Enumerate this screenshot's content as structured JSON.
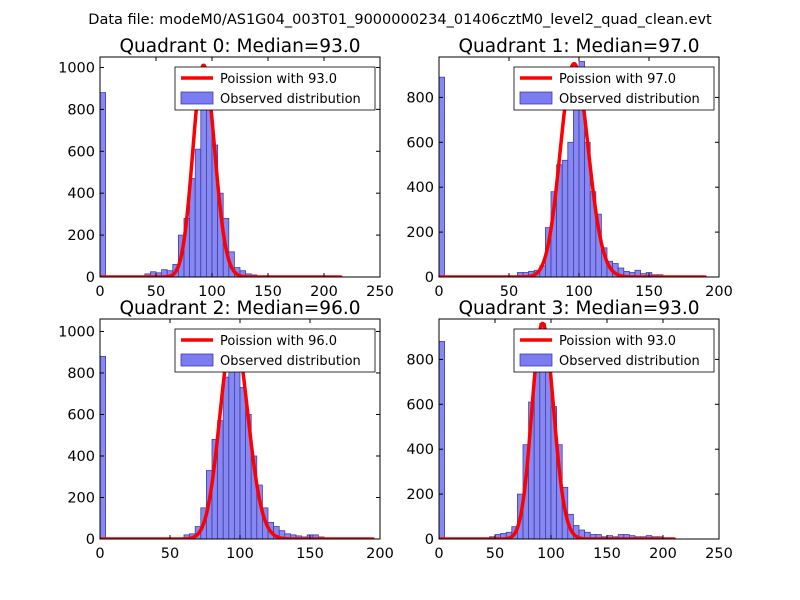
{
  "figure_title": "Data file: modeM0/AS1G04_003T01_9000000234_01406cztM0_level2_quad_clean.evt",
  "colors": {
    "bar_fill": "#7B7BF2",
    "bar_edge": "#3F3FA8",
    "curve": "#FF0000",
    "axes": "#000000"
  },
  "chart_data": [
    {
      "type": "bar",
      "title": "Quadrant 0: Median=93.0",
      "median": 93.0,
      "xlim": [
        0,
        250
      ],
      "ylim": [
        0,
        1050
      ],
      "xticks": [
        0,
        50,
        100,
        150,
        200,
        250
      ],
      "yticks": [
        0,
        200,
        400,
        600,
        800,
        1000
      ],
      "xtick_labels": [
        "0",
        "50",
        "100",
        "150",
        "200",
        "250"
      ],
      "ytick_labels": [
        "0",
        "200",
        "400",
        "600",
        "800",
        "1000"
      ],
      "legend": [
        "Poission with 93.0",
        "Observed distribution"
      ],
      "legend_position": "top-right",
      "series": [
        {
          "name": "Observed distribution",
          "kind": "histogram",
          "bin_width": 5,
          "bins": [
            {
              "x": 0,
              "y": 880
            },
            {
              "x": 40,
              "y": 15
            },
            {
              "x": 45,
              "y": 25
            },
            {
              "x": 50,
              "y": 20
            },
            {
              "x": 55,
              "y": 35
            },
            {
              "x": 60,
              "y": 30
            },
            {
              "x": 65,
              "y": 60
            },
            {
              "x": 70,
              "y": 200
            },
            {
              "x": 75,
              "y": 280
            },
            {
              "x": 80,
              "y": 470
            },
            {
              "x": 85,
              "y": 610
            },
            {
              "x": 90,
              "y": 800
            },
            {
              "x": 95,
              "y": 860
            },
            {
              "x": 100,
              "y": 630
            },
            {
              "x": 105,
              "y": 400
            },
            {
              "x": 110,
              "y": 280
            },
            {
              "x": 115,
              "y": 120
            },
            {
              "x": 120,
              "y": 45
            },
            {
              "x": 125,
              "y": 30
            },
            {
              "x": 130,
              "y": 15
            },
            {
              "x": 135,
              "y": 10
            },
            {
              "x": 140,
              "y": 5
            },
            {
              "x": 150,
              "y": 3
            },
            {
              "x": 160,
              "y": 3
            },
            {
              "x": 170,
              "y": 3
            },
            {
              "x": 190,
              "y": 5
            },
            {
              "x": 205,
              "y": 3
            }
          ]
        },
        {
          "name": "Poission with 93.0",
          "kind": "line",
          "mean": 93.0,
          "peak": 1010,
          "x_range": [
            0,
            215
          ]
        }
      ]
    },
    {
      "type": "bar",
      "title": "Quadrant 1: Median=97.0",
      "median": 97.0,
      "xlim": [
        0,
        200
      ],
      "ylim": [
        0,
        980
      ],
      "xticks": [
        0,
        50,
        100,
        150,
        200
      ],
      "yticks": [
        0,
        200,
        400,
        600,
        800
      ],
      "xtick_labels": [
        "0",
        "50",
        "100",
        "150",
        "200"
      ],
      "ytick_labels": [
        "0",
        "200",
        "400",
        "600",
        "800"
      ],
      "legend": [
        "Poission with 97.0",
        "Observed distribution"
      ],
      "legend_position": "top-right",
      "series": [
        {
          "name": "Observed distribution",
          "kind": "histogram",
          "bin_width": 4,
          "bins": [
            {
              "x": 0,
              "y": 890
            },
            {
              "x": 56,
              "y": 20
            },
            {
              "x": 60,
              "y": 20
            },
            {
              "x": 64,
              "y": 25
            },
            {
              "x": 68,
              "y": 30
            },
            {
              "x": 72,
              "y": 50
            },
            {
              "x": 76,
              "y": 220
            },
            {
              "x": 80,
              "y": 380
            },
            {
              "x": 84,
              "y": 500
            },
            {
              "x": 88,
              "y": 520
            },
            {
              "x": 92,
              "y": 600
            },
            {
              "x": 96,
              "y": 750
            },
            {
              "x": 100,
              "y": 960
            },
            {
              "x": 104,
              "y": 600
            },
            {
              "x": 108,
              "y": 380
            },
            {
              "x": 112,
              "y": 280
            },
            {
              "x": 116,
              "y": 130
            },
            {
              "x": 120,
              "y": 70
            },
            {
              "x": 124,
              "y": 60
            },
            {
              "x": 128,
              "y": 40
            },
            {
              "x": 132,
              "y": 25
            },
            {
              "x": 136,
              "y": 20
            },
            {
              "x": 140,
              "y": 30
            },
            {
              "x": 144,
              "y": 15
            },
            {
              "x": 148,
              "y": 20
            },
            {
              "x": 152,
              "y": 10
            },
            {
              "x": 156,
              "y": 10
            },
            {
              "x": 160,
              "y": 5
            },
            {
              "x": 168,
              "y": 5
            }
          ]
        },
        {
          "name": "Poission with 97.0",
          "kind": "line",
          "mean": 97.0,
          "peak": 950,
          "x_range": [
            0,
            190
          ]
        }
      ]
    },
    {
      "type": "bar",
      "title": "Quadrant 2: Median=96.0",
      "median": 96.0,
      "xlim": [
        0,
        200
      ],
      "ylim": [
        0,
        1060
      ],
      "xticks": [
        0,
        50,
        100,
        150,
        200
      ],
      "yticks": [
        0,
        200,
        400,
        600,
        800,
        1000
      ],
      "xtick_labels": [
        "0",
        "50",
        "100",
        "150",
        "200"
      ],
      "ytick_labels": [
        "0",
        "200",
        "400",
        "600",
        "800",
        "1000"
      ],
      "legend": [
        "Poission with 96.0",
        "Observed distribution"
      ],
      "legend_position": "top-right",
      "series": [
        {
          "name": "Observed distribution",
          "kind": "histogram",
          "bin_width": 4,
          "bins": [
            {
              "x": 0,
              "y": 880
            },
            {
              "x": 60,
              "y": 20
            },
            {
              "x": 64,
              "y": 25
            },
            {
              "x": 68,
              "y": 60
            },
            {
              "x": 72,
              "y": 150
            },
            {
              "x": 76,
              "y": 330
            },
            {
              "x": 80,
              "y": 480
            },
            {
              "x": 84,
              "y": 570
            },
            {
              "x": 88,
              "y": 780
            },
            {
              "x": 92,
              "y": 1010
            },
            {
              "x": 96,
              "y": 910
            },
            {
              "x": 100,
              "y": 730
            },
            {
              "x": 104,
              "y": 600
            },
            {
              "x": 108,
              "y": 400
            },
            {
              "x": 112,
              "y": 260
            },
            {
              "x": 116,
              "y": 150
            },
            {
              "x": 120,
              "y": 80
            },
            {
              "x": 124,
              "y": 60
            },
            {
              "x": 128,
              "y": 40
            },
            {
              "x": 132,
              "y": 25
            },
            {
              "x": 136,
              "y": 20
            },
            {
              "x": 140,
              "y": 15
            },
            {
              "x": 144,
              "y": 10
            },
            {
              "x": 148,
              "y": 20
            },
            {
              "x": 152,
              "y": 20
            },
            {
              "x": 156,
              "y": 10
            }
          ]
        },
        {
          "name": "Poission with 96.0",
          "kind": "line",
          "mean": 96.0,
          "peak": 1005,
          "x_range": [
            0,
            195
          ]
        }
      ]
    },
    {
      "type": "bar",
      "title": "Quadrant 3: Median=93.0",
      "median": 93.0,
      "xlim": [
        0,
        250
      ],
      "ylim": [
        0,
        980
      ],
      "xticks": [
        0,
        50,
        100,
        150,
        200,
        250
      ],
      "yticks": [
        0,
        200,
        400,
        600,
        800
      ],
      "xtick_labels": [
        "0",
        "50",
        "100",
        "150",
        "200",
        "250"
      ],
      "ytick_labels": [
        "0",
        "200",
        "400",
        "600",
        "800"
      ],
      "legend": [
        "Poission with 93.0",
        "Observed distribution"
      ],
      "legend_position": "top-right",
      "series": [
        {
          "name": "Observed distribution",
          "kind": "histogram",
          "bin_width": 5,
          "bins": [
            {
              "x": 0,
              "y": 880
            },
            {
              "x": 45,
              "y": 10
            },
            {
              "x": 50,
              "y": 20
            },
            {
              "x": 55,
              "y": 25
            },
            {
              "x": 60,
              "y": 30
            },
            {
              "x": 65,
              "y": 55
            },
            {
              "x": 70,
              "y": 200
            },
            {
              "x": 75,
              "y": 420
            },
            {
              "x": 80,
              "y": 610
            },
            {
              "x": 85,
              "y": 880
            },
            {
              "x": 90,
              "y": 960
            },
            {
              "x": 95,
              "y": 820
            },
            {
              "x": 100,
              "y": 590
            },
            {
              "x": 105,
              "y": 420
            },
            {
              "x": 110,
              "y": 230
            },
            {
              "x": 115,
              "y": 110
            },
            {
              "x": 120,
              "y": 60
            },
            {
              "x": 125,
              "y": 40
            },
            {
              "x": 130,
              "y": 30
            },
            {
              "x": 135,
              "y": 20
            },
            {
              "x": 140,
              "y": 20
            },
            {
              "x": 145,
              "y": 10
            },
            {
              "x": 150,
              "y": 15
            },
            {
              "x": 155,
              "y": 10
            },
            {
              "x": 160,
              "y": 20
            },
            {
              "x": 165,
              "y": 20
            },
            {
              "x": 170,
              "y": 15
            },
            {
              "x": 175,
              "y": 10
            },
            {
              "x": 180,
              "y": 10
            },
            {
              "x": 185,
              "y": 15
            },
            {
              "x": 190,
              "y": 10
            },
            {
              "x": 195,
              "y": 10
            }
          ]
        },
        {
          "name": "Poission with 93.0",
          "kind": "line",
          "mean": 93.0,
          "peak": 960,
          "x_range": [
            0,
            210
          ]
        }
      ]
    }
  ]
}
